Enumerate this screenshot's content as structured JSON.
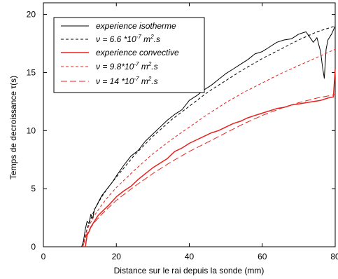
{
  "chart_data": {
    "type": "line",
    "xlabel": "Distance sur le rai depuis la sonde (mm)",
    "ylabel": "Temps de decroissance τ(s)",
    "xlim": [
      0,
      80
    ],
    "ylim": [
      0,
      21
    ],
    "x_ticks": [
      "0",
      "20",
      "40",
      "60",
      "80"
    ],
    "y_ticks": [
      "0",
      "5",
      "10",
      "15",
      "20"
    ],
    "grid": false,
    "legend_position": "top-left",
    "series": [
      {
        "name": "experience isotherme",
        "color": "#000000",
        "style": "solid",
        "x": [
          10.5,
          11.0,
          11.5,
          12.0,
          12.5,
          13.0,
          13.5,
          14.0,
          15.0,
          16.0,
          17.0,
          18.0,
          19.0,
          20.0,
          22.0,
          24.0,
          26.0,
          28.0,
          30.0,
          32.0,
          34.0,
          36.0,
          38.0,
          40.0,
          42.0,
          44.0,
          46.0,
          48.0,
          50.0,
          52.0,
          54.0,
          56.0,
          58.0,
          60.0,
          62.0,
          64.0,
          66.0,
          68.0,
          70.0,
          72.0,
          74.0,
          75.0,
          76.0,
          76.5,
          77.0,
          77.5,
          78.0,
          79.0,
          80.0
        ],
        "y": [
          0.0,
          0.5,
          1.5,
          2.2,
          2.0,
          2.8,
          2.4,
          3.2,
          3.8,
          4.4,
          4.8,
          5.2,
          5.6,
          6.1,
          7.0,
          7.8,
          8.3,
          9.1,
          9.7,
          10.3,
          10.9,
          11.4,
          11.8,
          12.6,
          13.0,
          13.5,
          13.9,
          14.4,
          14.9,
          15.3,
          15.7,
          16.1,
          16.6,
          16.8,
          17.2,
          17.6,
          17.8,
          17.9,
          18.3,
          18.5,
          17.6,
          18.0,
          16.8,
          15.5,
          14.5,
          17.0,
          17.8,
          18.3,
          19.0
        ]
      },
      {
        "name": "ν = 6.6 *10-7 m2.s",
        "color": "#000000",
        "style": "dashed",
        "x": [
          10.8,
          12,
          14,
          16,
          18,
          20,
          25,
          30,
          35,
          40,
          45,
          50,
          55,
          60,
          65,
          70,
          75,
          80
        ],
        "y": [
          0.0,
          1.6,
          3.2,
          4.3,
          5.2,
          6.0,
          7.9,
          9.5,
          10.9,
          12.1,
          13.3,
          14.3,
          15.3,
          16.2,
          17.0,
          17.8,
          18.5,
          19.0
        ]
      },
      {
        "name": "experience convective",
        "color": "#e8211d",
        "style": "solid",
        "x": [
          11.5,
          12.0,
          12.5,
          13.0,
          14.0,
          15.0,
          16.0,
          18.0,
          20.0,
          22.0,
          24.0,
          26.0,
          28.0,
          30.0,
          32.0,
          34.0,
          36.0,
          38.0,
          40.0,
          42.0,
          44.0,
          46.0,
          48.0,
          50.0,
          52.0,
          54.0,
          56.0,
          58.0,
          60.0,
          62.0,
          64.0,
          66.0,
          68.0,
          70.0,
          72.0,
          74.0,
          76.0,
          78.0,
          79.5,
          80.0
        ],
        "y": [
          0.0,
          1.0,
          1.3,
          1.7,
          2.2,
          2.7,
          3.0,
          3.6,
          4.3,
          4.8,
          5.2,
          5.8,
          6.3,
          6.8,
          7.2,
          7.6,
          8.2,
          8.5,
          8.9,
          9.2,
          9.5,
          9.8,
          10.0,
          10.3,
          10.6,
          10.8,
          11.1,
          11.3,
          11.5,
          11.7,
          11.9,
          12.0,
          12.2,
          12.3,
          12.4,
          12.5,
          12.6,
          12.8,
          12.9,
          15.3
        ]
      },
      {
        "name": "ν = 9.8*10-7 m2.s",
        "color": "#e8211d",
        "style": "dashed",
        "x": [
          10.8,
          12,
          14,
          16,
          18,
          20,
          25,
          30,
          35,
          40,
          45,
          50,
          55,
          60,
          65,
          70,
          75,
          80
        ],
        "y": [
          0.0,
          1.5,
          2.7,
          3.6,
          4.4,
          5.1,
          6.6,
          8.0,
          9.2,
          10.3,
          11.4,
          12.4,
          13.3,
          14.1,
          14.9,
          15.6,
          16.3,
          17.0
        ]
      },
      {
        "name": "ν = 14 *10-7 m2.s",
        "color": "#e8211d",
        "style": "longdash",
        "x": [
          10.8,
          12,
          14,
          16,
          18,
          20,
          25,
          30,
          35,
          40,
          45,
          50,
          55,
          60,
          65,
          70,
          75,
          80
        ],
        "y": [
          0.0,
          1.2,
          2.1,
          2.8,
          3.4,
          4.0,
          5.2,
          6.3,
          7.3,
          8.2,
          9.0,
          9.8,
          10.6,
          11.3,
          11.9,
          12.4,
          12.8,
          13.1
        ]
      }
    ]
  },
  "legend": {
    "entries": [
      {
        "text": "experience isotherme"
      },
      {
        "pre": "ν = 6.6 *10",
        "sup1": "-7",
        "mid": " m",
        "sup2": "2",
        "post": ".s"
      },
      {
        "text": "experience convective"
      },
      {
        "pre": "ν = 9.8*10",
        "sup1": "-7",
        "mid": " m",
        "sup2": "2",
        "post": ".s"
      },
      {
        "pre": "ν = 14 *10",
        "sup1": "-7",
        "mid": " m",
        "sup2": "2",
        "post": ".s"
      }
    ]
  }
}
